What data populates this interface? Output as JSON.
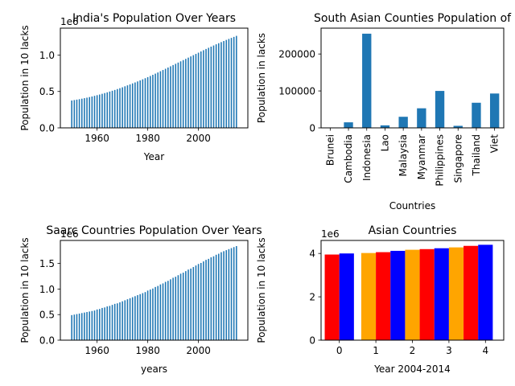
{
  "chart_data": [
    {
      "type": "bar",
      "title": "India's Population Over Years",
      "xlabel": "Year",
      "ylabel": "Population in 10 lacks",
      "offset_label": "1e6",
      "xlim": [
        1945.5,
        2019.5
      ],
      "ylim": [
        0,
        1.37
      ],
      "xticks": [
        1960,
        1980,
        2000
      ],
      "yticks": [
        "0.0",
        "0.5",
        "1.0"
      ],
      "ytick_values": [
        0,
        0.5,
        1.0
      ],
      "color": "#1f77b4",
      "x_start": 1950,
      "x_end": 2015,
      "values": [
        0.376,
        0.382,
        0.388,
        0.394,
        0.401,
        0.408,
        0.415,
        0.423,
        0.431,
        0.44,
        0.449,
        0.458,
        0.468,
        0.478,
        0.488,
        0.499,
        0.51,
        0.521,
        0.533,
        0.545,
        0.557,
        0.571,
        0.584,
        0.597,
        0.611,
        0.624,
        0.638,
        0.652,
        0.667,
        0.682,
        0.697,
        0.713,
        0.729,
        0.745,
        0.761,
        0.778,
        0.795,
        0.812,
        0.829,
        0.846,
        0.863,
        0.88,
        0.897,
        0.914,
        0.931,
        0.948,
        0.965,
        0.982,
        0.999,
        1.016,
        1.033,
        1.05,
        1.067,
        1.084,
        1.1,
        1.116,
        1.132,
        1.148,
        1.163,
        1.178,
        1.193,
        1.208,
        1.222,
        1.236,
        1.25,
        1.264
      ]
    },
    {
      "type": "bar",
      "title": "South Asian Counties Population of",
      "xlabel": "Countries",
      "ylabel": "Population in lacks",
      "ylim": [
        0,
        270000
      ],
      "yticks": [
        "0",
        "100000",
        "200000"
      ],
      "ytick_values": [
        0,
        100000,
        200000
      ],
      "color": "#1f77b4",
      "categories": [
        "Brunei",
        "Cambodia",
        "Indonesia",
        "Lao",
        "Malaysia",
        "Myanmar",
        "Philippines",
        "Singapore",
        "Thailand",
        "Viet"
      ],
      "values": [
        420,
        15000,
        255000,
        6800,
        30000,
        53000,
        100000,
        5500,
        68000,
        93000
      ]
    },
    {
      "type": "bar",
      "title": "Saarc Countries Population Over Years",
      "xlabel": "years",
      "ylabel": "Population in 10 lacks",
      "offset_label": "1e6",
      "xlim": [
        1945.5,
        2019.5
      ],
      "ylim": [
        0,
        1.95
      ],
      "xticks": [
        1960,
        1980,
        2000
      ],
      "yticks": [
        "0.0",
        "0.5",
        "1.0",
        "1.5"
      ],
      "ytick_values": [
        0,
        0.5,
        1.0,
        1.5
      ],
      "color": "#1f77b4",
      "x_start": 1950,
      "x_end": 2015,
      "values": [
        0.49,
        0.5,
        0.51,
        0.52,
        0.53,
        0.54,
        0.55,
        0.56,
        0.57,
        0.58,
        0.6,
        0.61,
        0.63,
        0.64,
        0.66,
        0.67,
        0.69,
        0.71,
        0.72,
        0.74,
        0.76,
        0.78,
        0.8,
        0.82,
        0.84,
        0.86,
        0.88,
        0.9,
        0.92,
        0.94,
        0.97,
        0.99,
        1.01,
        1.04,
        1.06,
        1.09,
        1.11,
        1.14,
        1.16,
        1.19,
        1.22,
        1.24,
        1.27,
        1.3,
        1.32,
        1.35,
        1.38,
        1.4,
        1.43,
        1.46,
        1.49,
        1.51,
        1.54,
        1.57,
        1.59,
        1.62,
        1.64,
        1.67,
        1.69,
        1.72,
        1.74,
        1.76,
        1.78,
        1.8,
        1.82,
        1.84
      ]
    },
    {
      "type": "bar",
      "title": "Asian Countries",
      "xlabel": "Year 2004-2014",
      "ylabel": "Population in 10 lacks",
      "offset_label": "1e6",
      "xlim": [
        -0.5,
        4.5
      ],
      "ylim": [
        0,
        4.6
      ],
      "xticks": [
        0,
        1,
        2,
        3,
        4
      ],
      "yticks": [
        "0",
        "2",
        "4"
      ],
      "ytick_values": [
        0,
        2,
        4
      ],
      "bars": [
        {
          "x": -0.2,
          "value": 3.95,
          "color": "#ff0000"
        },
        {
          "x": 0.2,
          "value": 4.0,
          "color": "#0000ff"
        },
        {
          "x": 0.8,
          "value": 4.02,
          "color": "#ffa500"
        },
        {
          "x": 1.2,
          "value": 4.06,
          "color": "#ff0000"
        },
        {
          "x": 1.6,
          "value": 4.12,
          "color": "#0000ff"
        },
        {
          "x": 2.0,
          "value": 4.17,
          "color": "#ffa500"
        },
        {
          "x": 2.4,
          "value": 4.2,
          "color": "#ff0000"
        },
        {
          "x": 2.8,
          "value": 4.24,
          "color": "#0000ff"
        },
        {
          "x": 3.2,
          "value": 4.28,
          "color": "#ffa500"
        },
        {
          "x": 3.6,
          "value": 4.35,
          "color": "#ff0000"
        },
        {
          "x": 4.0,
          "value": 4.4,
          "color": "#0000ff"
        }
      ]
    }
  ]
}
